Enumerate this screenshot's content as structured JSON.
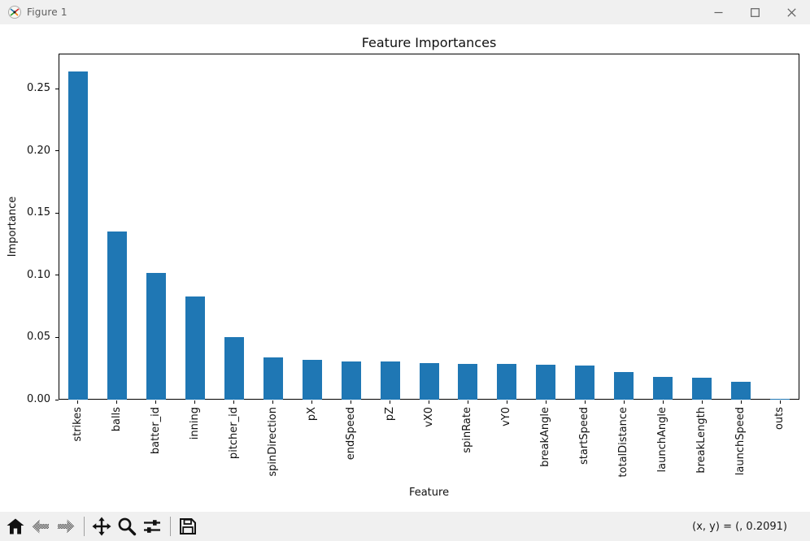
{
  "titlebar": {
    "title": "Figure 1",
    "icon": "matplotlib-logo-icon",
    "controls": [
      "minimize-icon",
      "maximize-icon",
      "close-icon"
    ]
  },
  "chart_data": {
    "type": "bar",
    "title": "Feature Importances",
    "xlabel": "Feature",
    "ylabel": "Importance",
    "categories": [
      "strikes",
      "balls",
      "batter_id",
      "inning",
      "pitcher_id",
      "spinDirection",
      "pX",
      "endSpeed",
      "pZ",
      "vX0",
      "spinRate",
      "vY0",
      "breakAngle",
      "startSpeed",
      "totalDistance",
      "launchAngle",
      "breakLength",
      "launchSpeed",
      "outs"
    ],
    "values": [
      0.2635,
      0.1351,
      0.102,
      0.083,
      0.0503,
      0.0338,
      0.0318,
      0.0308,
      0.0306,
      0.0292,
      0.0287,
      0.0286,
      0.0278,
      0.0272,
      0.0219,
      0.0186,
      0.0178,
      0.0146,
      0.0004
    ],
    "ytick_labels": [
      "0.00",
      "0.05",
      "0.10",
      "0.15",
      "0.20",
      "0.25"
    ],
    "yticks": [
      0.0,
      0.05,
      0.1,
      0.15,
      0.2,
      0.25
    ],
    "ylim": [
      0,
      0.2781
    ],
    "x_tick_rotation": 90,
    "grid": false,
    "legend": null,
    "bar_color": "#1f77b4"
  },
  "toolbar": {
    "buttons": [
      {
        "icon": "home-icon",
        "enabled": true
      },
      {
        "icon": "back-icon",
        "enabled": false
      },
      {
        "icon": "forward-icon",
        "enabled": false
      },
      {
        "icon": "pan-icon",
        "enabled": true
      },
      {
        "icon": "zoom-to-rect-icon",
        "enabled": true
      },
      {
        "icon": "configure-subplots-icon",
        "enabled": true
      },
      {
        "icon": "save-icon",
        "enabled": true
      }
    ],
    "status_text": "(x, y) = (, 0.2091)"
  },
  "colors": {
    "bar": "#1f77b4",
    "window_bg": "#f0f0f0",
    "canvas_bg": "#ffffff",
    "titlebar_text": "#5f5f5f",
    "spine": "#000000"
  }
}
